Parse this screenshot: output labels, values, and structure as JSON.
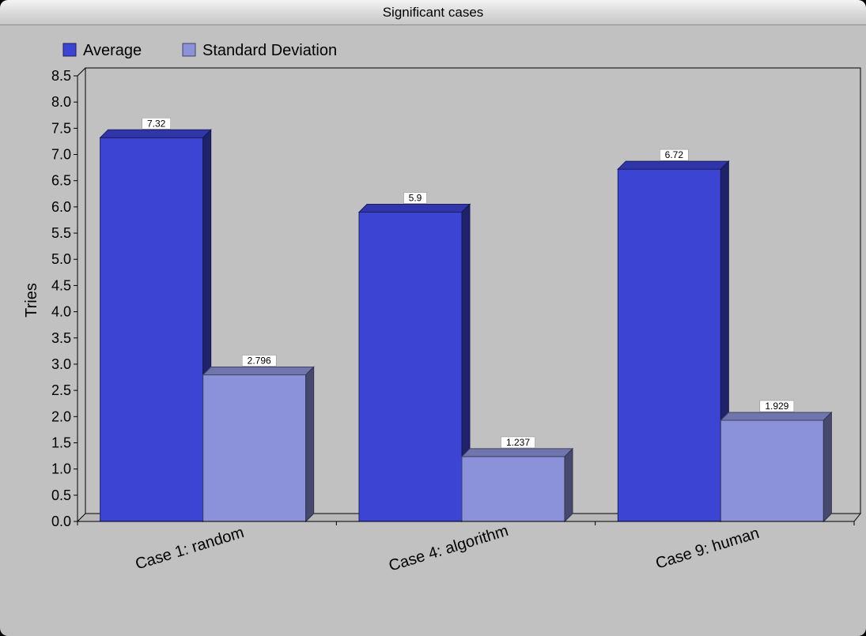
{
  "window": {
    "title": "Significant cases"
  },
  "chart_data": {
    "type": "bar",
    "title": "Significant cases",
    "ylabel": "Tries",
    "xlabel": "",
    "categories": [
      "Case 1: random",
      "Case 4: algorithm",
      "Case 9: human"
    ],
    "series": [
      {
        "name": "Average",
        "values": [
          7.32,
          5.9,
          6.72
        ],
        "labels": [
          "7.32",
          "5.9",
          "6.72"
        ],
        "color": "#3c44d4"
      },
      {
        "name": "Standard Deviation",
        "values": [
          2.796,
          1.237,
          1.929
        ],
        "labels": [
          "2.796",
          "1.237",
          "1.929"
        ],
        "color": "#8c92d9"
      }
    ],
    "ylim": [
      0,
      8.5
    ],
    "yticks": [
      "0.0",
      "0.5",
      "1.0",
      "1.5",
      "2.0",
      "2.5",
      "3.0",
      "3.5",
      "4.0",
      "4.5",
      "5.0",
      "5.5",
      "6.0",
      "6.5",
      "7.0",
      "7.5",
      "8.0",
      "8.5"
    ],
    "legend": "top-left",
    "grid": false,
    "style": "3d"
  }
}
